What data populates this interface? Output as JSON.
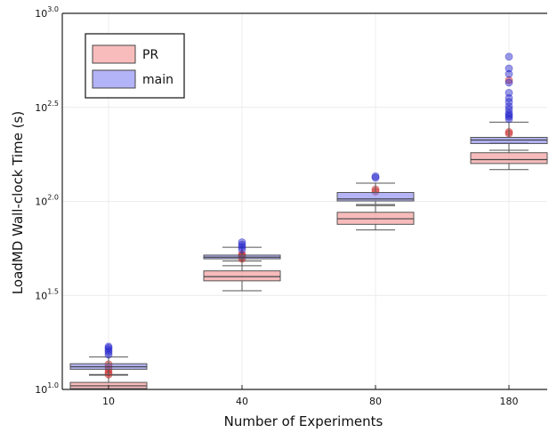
{
  "chart_data": {
    "type": "box",
    "xlabel": "Number of Experiments",
    "ylabel": "LoadMD Wall-clock Time (s)",
    "y_scale": "log10",
    "ylim": [
      10,
      1000
    ],
    "y_ticks": [
      {
        "value": 10,
        "base": "10",
        "exp": "1.0"
      },
      {
        "value": 31.62,
        "base": "10",
        "exp": "1.5"
      },
      {
        "value": 100,
        "base": "10",
        "exp": "2.0"
      },
      {
        "value": 316.2,
        "base": "10",
        "exp": "2.5"
      },
      {
        "value": 1000,
        "base": "10",
        "exp": "3.0"
      }
    ],
    "categories": [
      "10",
      "40",
      "80",
      "180"
    ],
    "grid": true,
    "legend": {
      "position": "top-left"
    },
    "series": [
      {
        "name": "PR",
        "color": "#f07878",
        "outlier_color": "#cc2222",
        "boxes": [
          {
            "whisker_low": 10.0,
            "q1": 10.1,
            "median": 10.45,
            "q3": 10.9,
            "whisker_high": 11.9,
            "outliers": [
              12.0,
              12.3,
              12.8,
              13.2,
              13.6
            ]
          },
          {
            "whisker_low": 33.5,
            "q1": 37.8,
            "median": 39.8,
            "q3": 42.7,
            "whisker_high": 48.2,
            "outliers": [
              49.5,
              50.8,
              51.5,
              52.3
            ]
          },
          {
            "whisker_low": 70.5,
            "q1": 75.5,
            "median": 80.8,
            "q3": 87.5,
            "whisker_high": 95.0,
            "outliers": [
              113.0,
              115.8
            ]
          },
          {
            "whisker_low": 147.5,
            "q1": 159.0,
            "median": 166.8,
            "q3": 181.5,
            "whisker_high": 204.0,
            "outliers": [
              229.5,
              234.0,
              441.0
            ]
          }
        ]
      },
      {
        "name": "main",
        "color": "#6a6af0",
        "outlier_color": "#2222cc",
        "boxes": [
          {
            "whisker_low": 12.0,
            "q1": 12.8,
            "median": 13.2,
            "q3": 13.7,
            "whisker_high": 14.9,
            "outliers": [
              15.3,
              15.8,
              16.2,
              16.6,
              16.9
            ]
          },
          {
            "whisker_low": 45.5,
            "q1": 49.5,
            "median": 50.5,
            "q3": 51.8,
            "whisker_high": 57.0,
            "outliers": [
              55.5,
              57.3,
              58.8,
              60.6
            ]
          },
          {
            "whisker_low": 96.2,
            "q1": 100.5,
            "median": 103.0,
            "q3": 111.5,
            "whisker_high": 125.0,
            "outliers": [
              133.5,
              136.0
            ]
          },
          {
            "whisker_low": 187.0,
            "q1": 203.0,
            "median": 212.0,
            "q3": 219.0,
            "whisker_high": 264.0,
            "outliers": [
              274.0,
              282.0,
              288.0,
              295.0,
              308.0,
              320.0,
              338.0,
              354.0,
              378.0,
              428.0,
              476.0,
              509.0,
              588.0
            ]
          }
        ]
      }
    ]
  }
}
